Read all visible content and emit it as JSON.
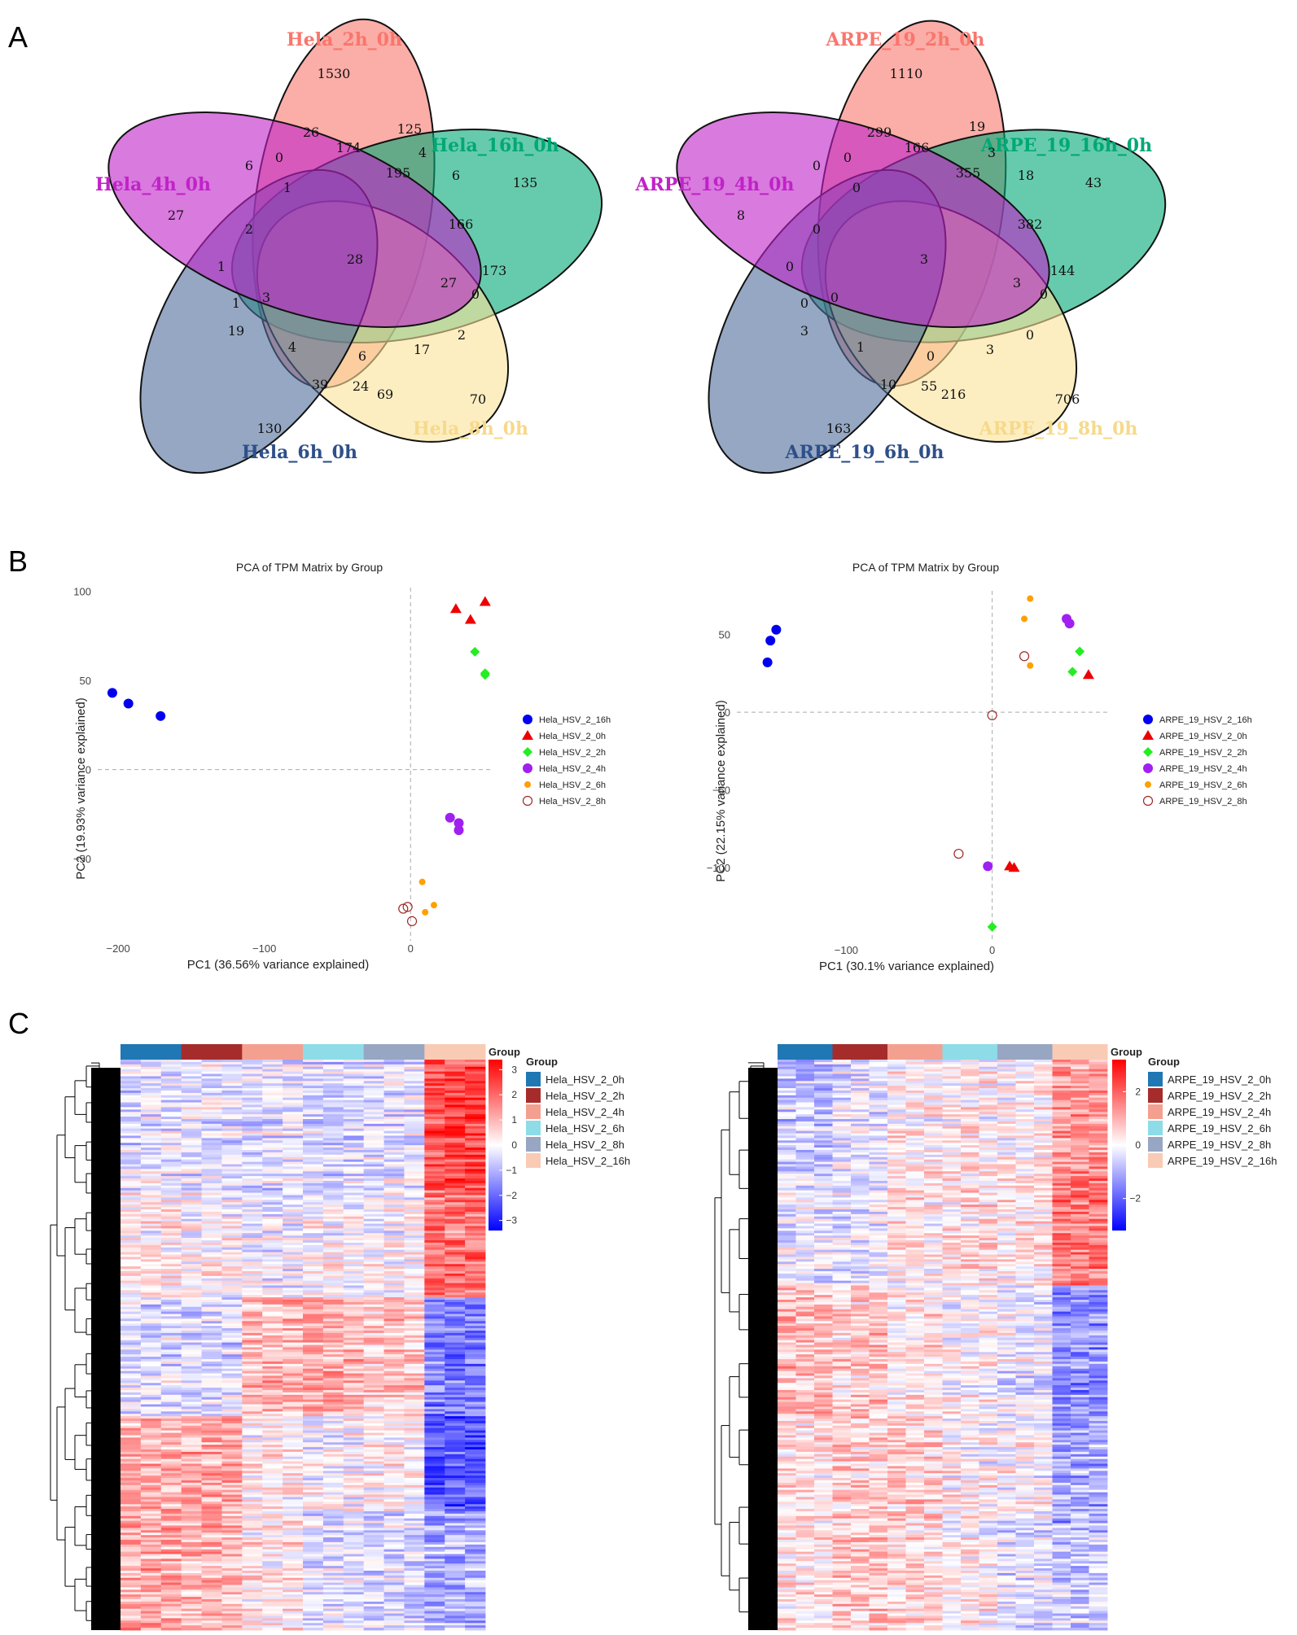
{
  "panels": {
    "a": "A",
    "b": "B",
    "c": "C"
  },
  "chart_data": [
    {
      "type": "venn",
      "id": "venn-hela",
      "sets": [
        {
          "label": "Hela_2h_0h",
          "color": "#F8766D",
          "only": 1530
        },
        {
          "label": "Hela_16h_0h",
          "color": "#00A875",
          "only": 135
        },
        {
          "label": "Hela_8h_0h",
          "color": "#FCE29A",
          "only": 70
        },
        {
          "label": "Hela_6h_0h",
          "color": "#4E6D9A",
          "only": 130
        },
        {
          "label": "Hela_4h_0h",
          "color": "#C022C8",
          "only": 27
        }
      ],
      "regions": [
        26,
        125,
        6,
        0,
        174,
        4,
        6,
        1,
        195,
        166,
        2,
        173,
        1,
        28,
        27,
        1,
        3,
        0,
        19,
        2,
        4,
        6,
        17,
        39,
        24,
        69
      ]
    },
    {
      "type": "venn",
      "id": "venn-arpe",
      "sets": [
        {
          "label": "ARPE_19_2h_0h",
          "color": "#F8766D",
          "only": 1110
        },
        {
          "label": "ARPE_19_16h_0h",
          "color": "#00A875",
          "only": 43
        },
        {
          "label": "ARPE_19_8h_0h",
          "color": "#FCE29A",
          "only": 706
        },
        {
          "label": "ARPE_19_6h_0h",
          "color": "#4E6D9A",
          "only": 163
        },
        {
          "label": "ARPE_19_4h_0h",
          "color": "#C022C8",
          "only": 8
        }
      ],
      "regions": [
        299,
        19,
        0,
        0,
        166,
        3,
        18,
        0,
        355,
        382,
        0,
        144,
        0,
        3,
        3,
        0,
        0,
        0,
        3,
        0,
        1,
        0,
        3,
        10,
        55,
        216
      ]
    },
    {
      "type": "scatter",
      "id": "pca-hela",
      "title": "PCA of TPM Matrix by Group",
      "xlabel": "PC1 (36.56% variance explained)",
      "ylabel": "PC2 (19.93% variance explained)",
      "xlim": [
        -214,
        55
      ],
      "ylim": [
        -96,
        102
      ],
      "xticks": [
        -200,
        -100,
        0
      ],
      "yticks": [
        -50,
        0,
        50,
        100
      ],
      "series": [
        {
          "name": "Hela_HSV_2_16h",
          "shape": "circle",
          "color": "#0000EE",
          "points": [
            [
              -204,
              43
            ],
            [
              -193,
              37
            ],
            [
              -171,
              30
            ]
          ]
        },
        {
          "name": "Hela_HSV_2_0h",
          "shape": "triangle",
          "color": "#EE0000",
          "points": [
            [
              31,
              90
            ],
            [
              41,
              84
            ],
            [
              51,
              94
            ]
          ]
        },
        {
          "name": "Hela_HSV_2_2h",
          "shape": "diamond",
          "color": "#22EE22",
          "points": [
            [
              44,
              66
            ],
            [
              51,
              54
            ],
            [
              51,
              53
            ]
          ]
        },
        {
          "name": "Hela_HSV_2_4h",
          "shape": "circle",
          "color": "#A020F0",
          "points": [
            [
              27,
              -27
            ],
            [
              33,
              -30
            ],
            [
              33,
              -34
            ]
          ]
        },
        {
          "name": "Hela_HSV_2_6h",
          "shape": "circle-small",
          "color": "#FFA000",
          "points": [
            [
              8,
              -63
            ],
            [
              10,
              -80
            ],
            [
              16,
              -76
            ]
          ]
        },
        {
          "name": "Hela_HSV_2_8h",
          "shape": "open-circle",
          "color": "#A02828",
          "points": [
            [
              -5,
              -78
            ],
            [
              -2,
              -77
            ],
            [
              1,
              -85
            ]
          ]
        }
      ]
    },
    {
      "type": "scatter",
      "id": "pca-arpe",
      "title": "PCA of TPM Matrix by Group",
      "xlabel": "PC1 (30.1% variance explained)",
      "ylabel": "PC2 (22.15% variance explained)",
      "xlim": [
        -175,
        80
      ],
      "ylim": [
        -148,
        78
      ],
      "xticks": [
        -100,
        0
      ],
      "yticks": [
        -100,
        -50,
        0,
        50
      ],
      "series": [
        {
          "name": "ARPE_19_HSV_2_16h",
          "shape": "circle",
          "color": "#0000EE",
          "points": [
            [
              -154,
              32
            ],
            [
              -152,
              46
            ],
            [
              -148,
              53
            ]
          ]
        },
        {
          "name": "ARPE_19_HSV_2_0h",
          "shape": "triangle",
          "color": "#EE0000",
          "points": [
            [
              12,
              -99
            ],
            [
              15,
              -100
            ],
            [
              66,
              24
            ]
          ]
        },
        {
          "name": "ARPE_19_HSV_2_2h",
          "shape": "diamond",
          "color": "#22EE22",
          "points": [
            [
              0,
              -138
            ],
            [
              55,
              26
            ],
            [
              60,
              39
            ]
          ]
        },
        {
          "name": "ARPE_19_HSV_2_4h",
          "shape": "circle",
          "color": "#A020F0",
          "points": [
            [
              -3,
              -99
            ],
            [
              51,
              60
            ],
            [
              53,
              57
            ]
          ]
        },
        {
          "name": "ARPE_19_HSV_2_6h",
          "shape": "circle-small",
          "color": "#FFA000",
          "points": [
            [
              22,
              60
            ],
            [
              26,
              73
            ],
            [
              26,
              30
            ]
          ]
        },
        {
          "name": "ARPE_19_HSV_2_8h",
          "shape": "open-circle",
          "color": "#A02828",
          "points": [
            [
              -23,
              -91
            ],
            [
              0,
              -2
            ],
            [
              22,
              36
            ]
          ]
        }
      ]
    },
    {
      "type": "heatmap",
      "id": "heat-hela",
      "annotation_title": "Group",
      "groups": [
        {
          "name": "Hela_HSV_2_0h",
          "color": "#1F77B4"
        },
        {
          "name": "Hela_HSV_2_2h",
          "color": "#A62C2C"
        },
        {
          "name": "Hela_HSV_2_4h",
          "color": "#F4A090"
        },
        {
          "name": "Hela_HSV_2_6h",
          "color": "#8DDCE8"
        },
        {
          "name": "Hela_HSV_2_8h",
          "color": "#97A6C2"
        },
        {
          "name": "Hela_HSV_2_16h",
          "color": "#F9CBB4"
        }
      ],
      "colorbar_ticks": [
        "3",
        "2",
        "1",
        "0",
        "−1",
        "−2",
        "−3"
      ],
      "colorbar_range": [
        -3.4,
        3.4
      ]
    },
    {
      "type": "heatmap",
      "id": "heat-arpe",
      "annotation_title": "Group",
      "groups": [
        {
          "name": "ARPE_19_HSV_2_0h",
          "color": "#1F77B4"
        },
        {
          "name": "ARPE_19_HSV_2_2h",
          "color": "#A62C2C"
        },
        {
          "name": "ARPE_19_HSV_2_4h",
          "color": "#F4A090"
        },
        {
          "name": "ARPE_19_HSV_2_6h",
          "color": "#8DDCE8"
        },
        {
          "name": "ARPE_19_HSV_2_8h",
          "color": "#97A6C2"
        },
        {
          "name": "ARPE_19_HSV_2_16h",
          "color": "#F9CBB4"
        }
      ],
      "colorbar_ticks": [
        "2",
        "0",
        "−2"
      ],
      "colorbar_range": [
        -3.2,
        3.2
      ]
    }
  ]
}
